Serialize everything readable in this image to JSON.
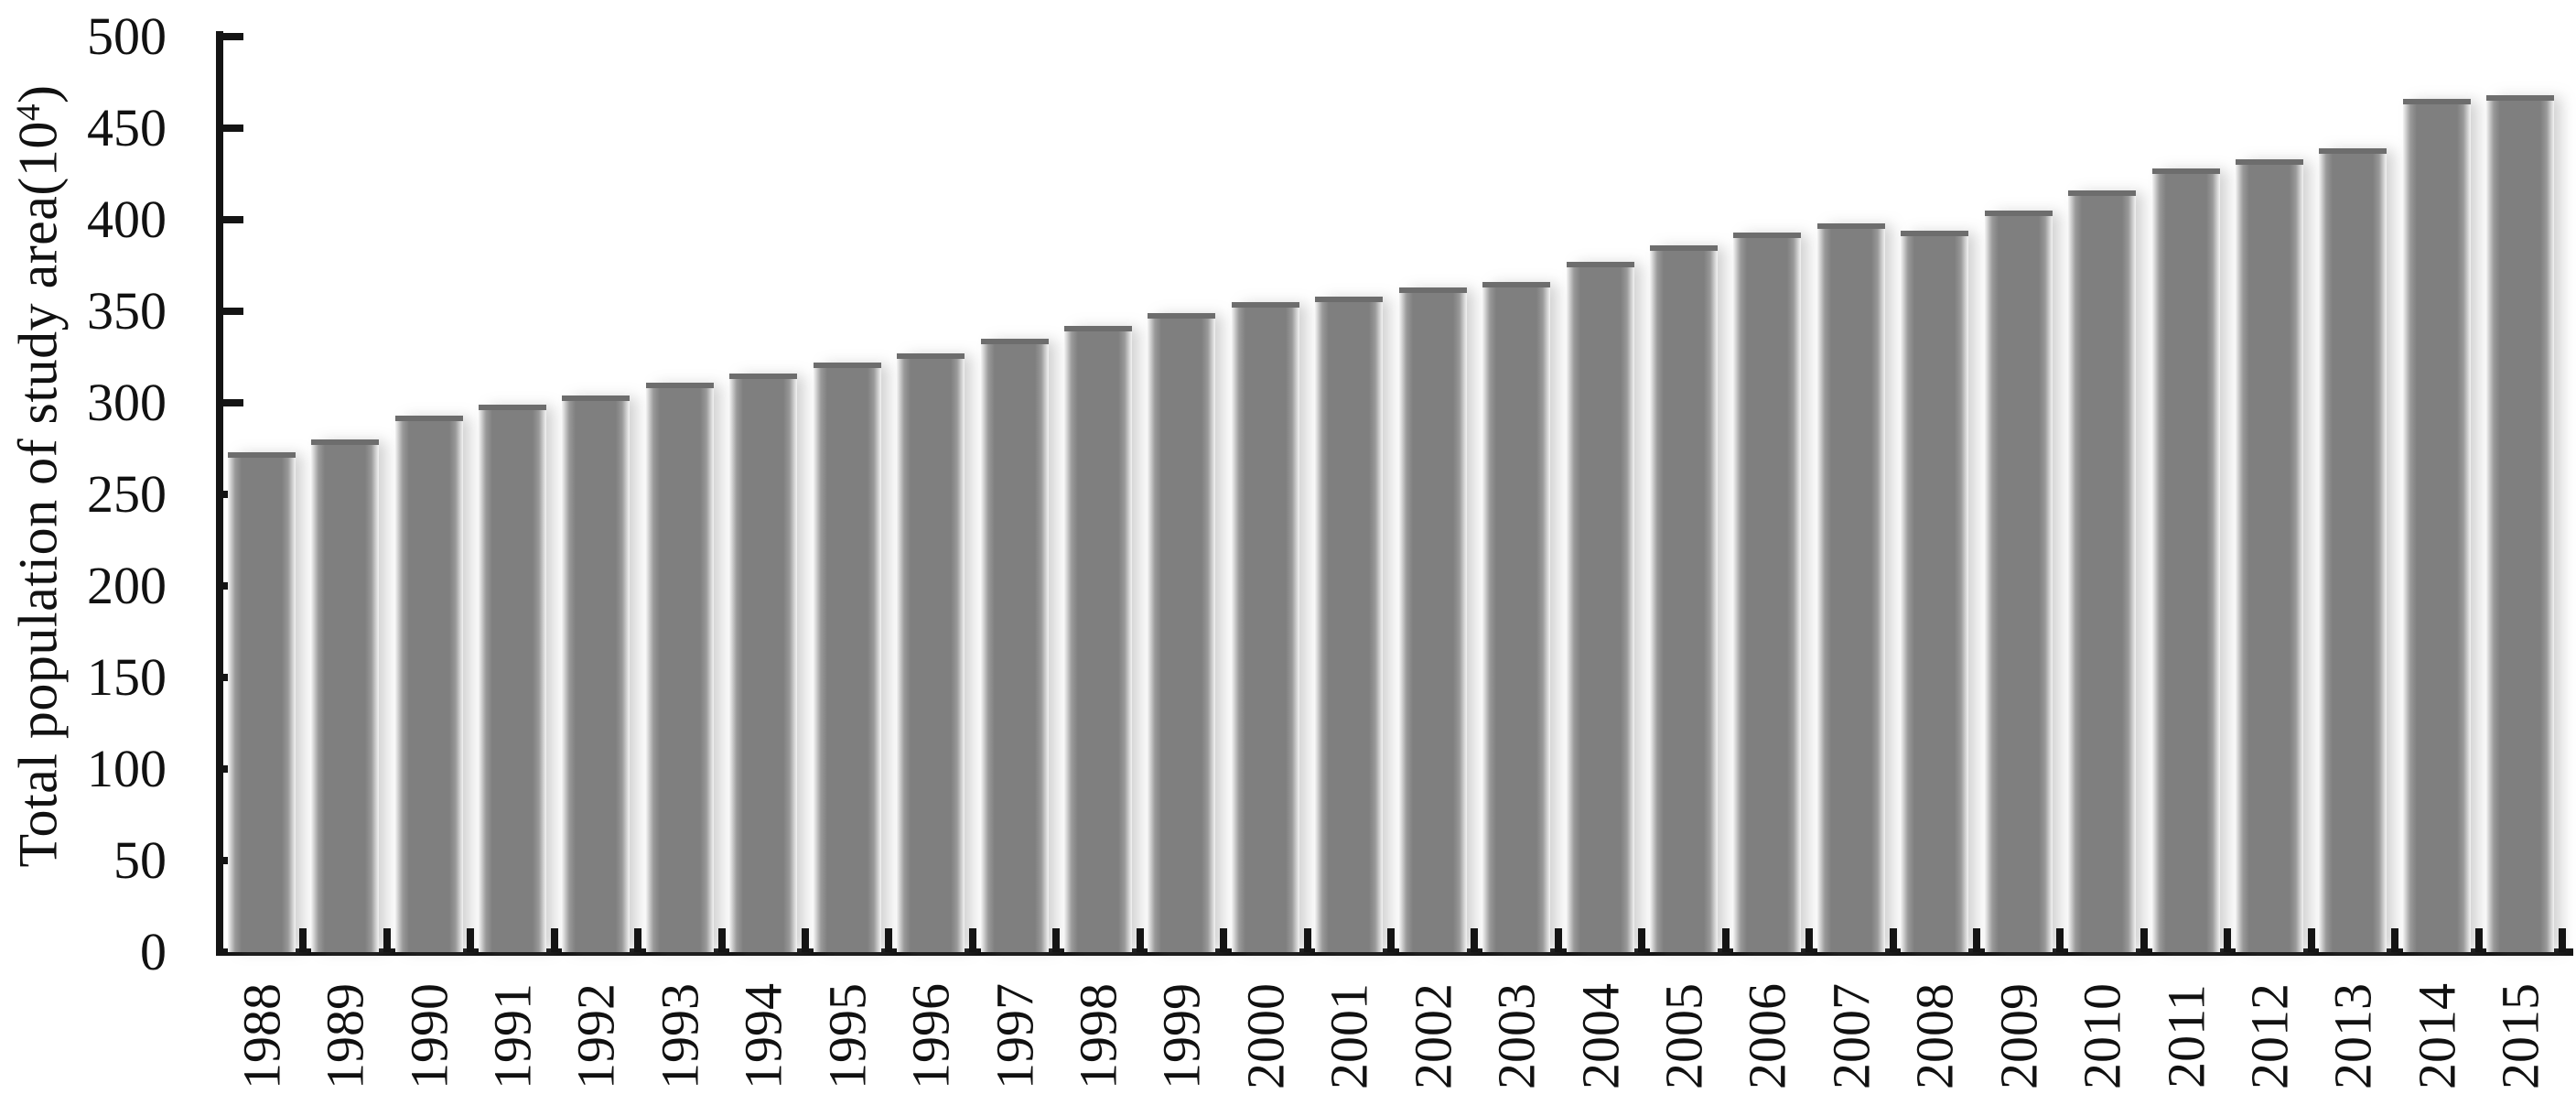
{
  "chart_data": {
    "type": "bar",
    "title": "",
    "ylabel": "Total population of study area(10⁴)",
    "ylabel_parts": {
      "main": "Total population of study area(10",
      "sup": "4",
      "close": ")"
    },
    "xlabel": "",
    "categories": [
      "1988",
      "1989",
      "1990",
      "1991",
      "1992",
      "1993",
      "1994",
      "1995",
      "1996",
      "1997",
      "1998",
      "1999",
      "2000",
      "2001",
      "2002",
      "2003",
      "2004",
      "2005",
      "2006",
      "2007",
      "2008",
      "2009",
      "2010",
      "2011",
      "2012",
      "2013",
      "2014",
      "2015"
    ],
    "values": [
      273,
      280,
      293,
      299,
      304,
      311,
      316,
      322,
      327,
      335,
      342,
      349,
      355,
      358,
      363,
      366,
      377,
      386,
      393,
      398,
      394,
      405,
      416,
      428,
      433,
      439,
      466,
      468
    ],
    "ylim": [
      0,
      500
    ],
    "y_tick_step": 50,
    "y_ticks": [
      500,
      450,
      400,
      350,
      300,
      250,
      200,
      150,
      100,
      50,
      0
    ],
    "grid": false,
    "legend": false,
    "colors": {
      "bar": "#7f7f7f",
      "bar_top_cap": "#6d6d6d",
      "axis": "#141414",
      "text": "#111111",
      "background": "#ffffff"
    }
  }
}
